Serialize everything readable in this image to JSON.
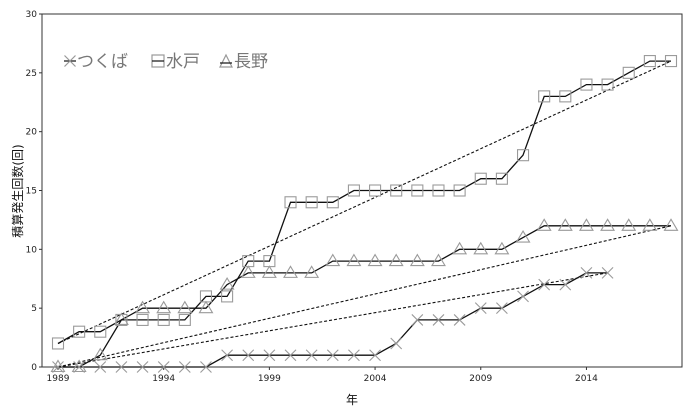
{
  "chart_data": {
    "type": "line",
    "xlabel": "年",
    "ylabel": "積算発生回数(回)",
    "xlim": [
      1989,
      2018
    ],
    "ylim": [
      0,
      30
    ],
    "x_ticks": [
      1989,
      1994,
      1999,
      2004,
      2009,
      2014
    ],
    "y_ticks": [
      0,
      5,
      10,
      15,
      20,
      25,
      30
    ],
    "grid": false,
    "legend_position": "top-left",
    "series": [
      {
        "name": "つくば",
        "marker": "x",
        "color": "#9a9a9a",
        "x": [
          1989,
          1990,
          1991,
          1992,
          1993,
          1994,
          1995,
          1996,
          1997,
          1998,
          1999,
          2000,
          2001,
          2002,
          2003,
          2004,
          2005,
          2006,
          2007,
          2008,
          2009,
          2010,
          2011,
          2012,
          2013,
          2014,
          2015
        ],
        "y": [
          0,
          0,
          0,
          0,
          0,
          0,
          0,
          0,
          1,
          1,
          1,
          1,
          1,
          1,
          1,
          1,
          2,
          4,
          4,
          4,
          5,
          5,
          6,
          7,
          7,
          8,
          8
        ],
        "trend": [
          [
            1989,
            0
          ],
          [
            2015,
            8
          ]
        ]
      },
      {
        "name": "水戸",
        "marker": "square",
        "color": "#9a9a9a",
        "x": [
          1989,
          1990,
          1991,
          1992,
          1993,
          1994,
          1995,
          1996,
          1997,
          1998,
          1999,
          2000,
          2001,
          2002,
          2003,
          2004,
          2005,
          2006,
          2007,
          2008,
          2009,
          2010,
          2011,
          2012,
          2013,
          2014,
          2015,
          2016,
          2017,
          2018
        ],
        "y": [
          2,
          3,
          3,
          4,
          4,
          4,
          4,
          6,
          6,
          9,
          9,
          14,
          14,
          14,
          15,
          15,
          15,
          15,
          15,
          15,
          16,
          16,
          18,
          23,
          23,
          24,
          24,
          25,
          26,
          26
        ],
        "trend": [
          [
            1989,
            2
          ],
          [
            2018,
            26
          ]
        ]
      },
      {
        "name": "長野",
        "marker": "triangle",
        "color": "#9a9a9a",
        "x": [
          1989,
          1990,
          1991,
          1992,
          1993,
          1994,
          1995,
          1996,
          1997,
          1998,
          1999,
          2000,
          2001,
          2002,
          2003,
          2004,
          2005,
          2006,
          2007,
          2008,
          2009,
          2010,
          2011,
          2012,
          2013,
          2014,
          2015,
          2016,
          2017,
          2018
        ],
        "y": [
          0,
          0,
          1,
          4,
          5,
          5,
          5,
          5,
          7,
          8,
          8,
          8,
          8,
          9,
          9,
          9,
          9,
          9,
          9,
          10,
          10,
          10,
          11,
          12,
          12,
          12,
          12,
          12,
          12,
          12
        ],
        "trend": [
          [
            1989,
            0
          ],
          [
            2018,
            12
          ]
        ]
      }
    ]
  }
}
